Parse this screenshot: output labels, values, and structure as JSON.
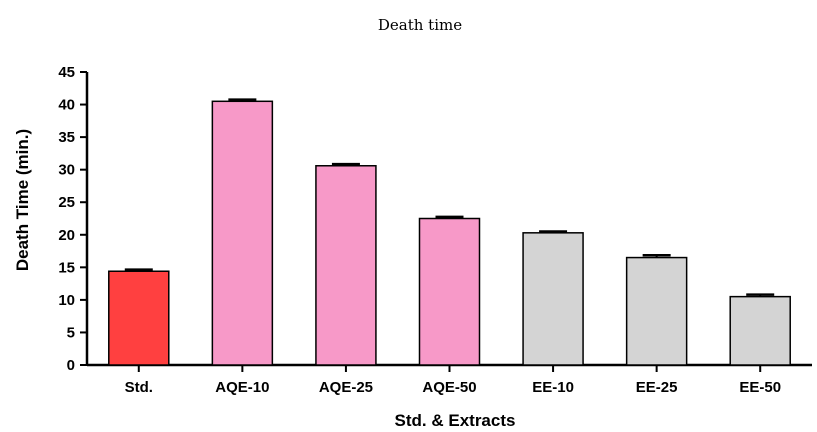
{
  "chart_data": {
    "type": "bar",
    "title": "Death time",
    "xlabel": "Std. & Extracts",
    "ylabel": "Death Time (min.)",
    "categories": [
      "Std.",
      "AQE-10",
      "AQE-25",
      "AQE-50",
      "EE-10",
      "EE-25",
      "EE-50"
    ],
    "values": [
      14.4,
      40.5,
      30.6,
      22.5,
      20.3,
      16.5,
      10.5
    ],
    "errors": [
      0.25,
      0.25,
      0.25,
      0.25,
      0.2,
      0.35,
      0.3
    ],
    "colors": [
      "#ff4040",
      "#f799c8",
      "#f799c8",
      "#f799c8",
      "#d4d4d4",
      "#d4d4d4",
      "#d4d4d4"
    ],
    "ylim": [
      0,
      45
    ],
    "yticks": [
      0,
      5,
      10,
      15,
      20,
      25,
      30,
      35,
      40,
      45
    ],
    "grid": false,
    "legend": "none"
  }
}
